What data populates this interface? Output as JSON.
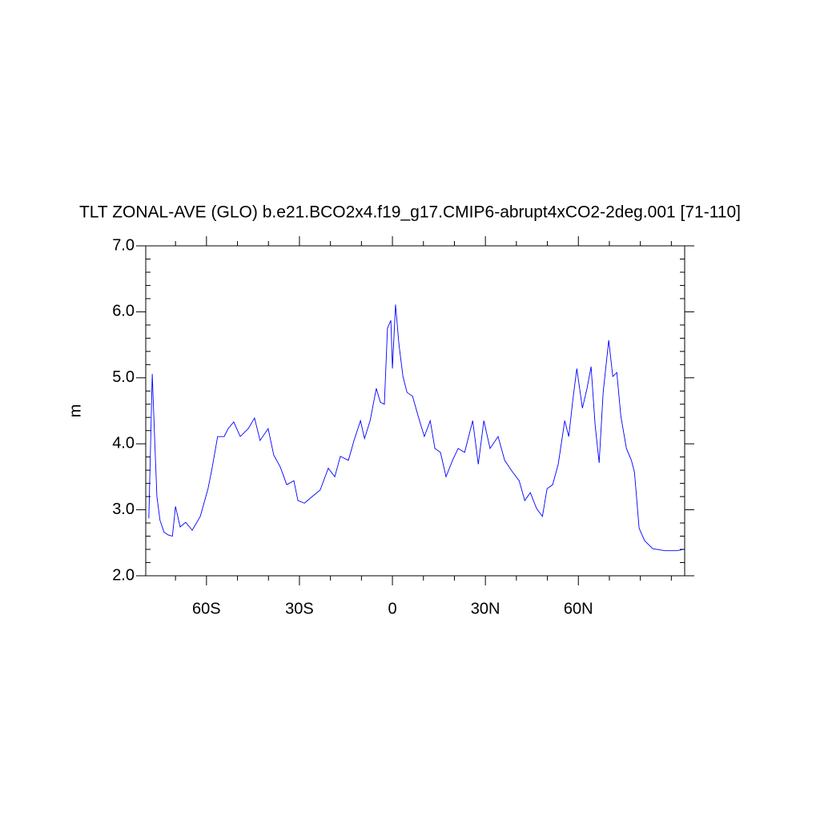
{
  "chart_data": {
    "type": "line",
    "title": "TLT ZONAL-AVE (GLO) b.e21.BCO2x4.f19_g17.CMIP6-abrupt4xCO2-2deg.001 [71-110]",
    "ylabel": "m",
    "xlim": [
      -79.6,
      94.3
    ],
    "ylim": [
      2,
      7
    ],
    "xticks": [
      {
        "value": -60,
        "label": "60S"
      },
      {
        "value": -30,
        "label": "30S"
      },
      {
        "value": 0,
        "label": "0"
      },
      {
        "value": 30,
        "label": "30N"
      },
      {
        "value": 60,
        "label": "60N"
      }
    ],
    "xminorticks": [
      -70,
      -50,
      -40,
      -20,
      -10,
      10,
      20,
      40,
      50,
      70,
      80,
      90
    ],
    "yticks": [
      {
        "value": 2,
        "label": "2.0"
      },
      {
        "value": 3,
        "label": "3.0"
      },
      {
        "value": 4,
        "label": "4.0"
      },
      {
        "value": 5,
        "label": "5.0"
      },
      {
        "value": 6,
        "label": "6.0"
      },
      {
        "value": 7,
        "label": "7.0"
      }
    ],
    "yminorticks": [
      2.2,
      2.4,
      2.6,
      2.8,
      3.2,
      3.4,
      3.6,
      3.8,
      4.2,
      4.4,
      4.6,
      4.8,
      5.2,
      5.4,
      5.6,
      5.8,
      6.2,
      6.4,
      6.6,
      6.8
    ],
    "x": [
      -78.6,
      -77.5,
      -76.8,
      -76,
      -75,
      -73.7,
      -72.4,
      -71,
      -70,
      -68.5,
      -66.7,
      -64.6,
      -62,
      -59.5,
      -58.2,
      -56.4,
      -54.3,
      -53,
      -51.2,
      -49.1,
      -46.5,
      -44.5,
      -42.7,
      -40.1,
      -38.3,
      -36.2,
      -34.1,
      -31.8,
      -30.5,
      -28.4,
      -25.9,
      -23.3,
      -20.7,
      -18.6,
      -16.8,
      -14.2,
      -12.4,
      -10.3,
      -9,
      -7.2,
      -5.2,
      -3.9,
      -2.6,
      -1.6,
      -0.5,
      0,
      1,
      2.1,
      3.4,
      4.7,
      6.5,
      8.3,
      10.3,
      12.2,
      13.7,
      15.5,
      17.3,
      19.4,
      21.2,
      23.3,
      25.9,
      27.7,
      29.5,
      31.5,
      34.1,
      36.2,
      38.8,
      40.9,
      42.7,
      44.5,
      46.5,
      48.4,
      49.9,
      51.7,
      53.5,
      55.6,
      56.9,
      58.2,
      59.5,
      61.3,
      62.8,
      64.1,
      65.4,
      66.7,
      68,
      69.8,
      71.1,
      72.4,
      73.7,
      75.5,
      77.1,
      78.1,
      79.6,
      81.4,
      84,
      87.9,
      91.8,
      93.9
    ],
    "series": [
      {
        "color": "#0000ff",
        "values": [
          2.87,
          5.06,
          4.17,
          3.2,
          2.84,
          2.66,
          2.62,
          2.6,
          3.05,
          2.74,
          2.81,
          2.69,
          2.9,
          3.32,
          3.63,
          4.11,
          4.11,
          4.23,
          4.33,
          4.11,
          4.23,
          4.39,
          4.05,
          4.23,
          3.83,
          3.65,
          3.38,
          3.44,
          3.14,
          3.1,
          3.2,
          3.3,
          3.63,
          3.5,
          3.81,
          3.75,
          4.05,
          4.35,
          4.08,
          4.35,
          4.84,
          4.63,
          4.6,
          5.75,
          5.87,
          5.14,
          6.11,
          5.51,
          5.02,
          4.78,
          4.72,
          4.42,
          4.11,
          4.35,
          3.93,
          3.87,
          3.5,
          3.75,
          3.93,
          3.87,
          4.35,
          3.69,
          4.35,
          3.93,
          4.11,
          3.75,
          3.57,
          3.44,
          3.14,
          3.26,
          3.02,
          2.9,
          3.32,
          3.38,
          3.69,
          4.35,
          4.11,
          4.66,
          5.14,
          4.54,
          4.84,
          5.17,
          4.29,
          3.71,
          4.78,
          5.57,
          5.02,
          5.08,
          4.42,
          3.93,
          3.75,
          3.57,
          2.72,
          2.53,
          2.41,
          2.38,
          2.38,
          2.4
        ]
      }
    ]
  }
}
